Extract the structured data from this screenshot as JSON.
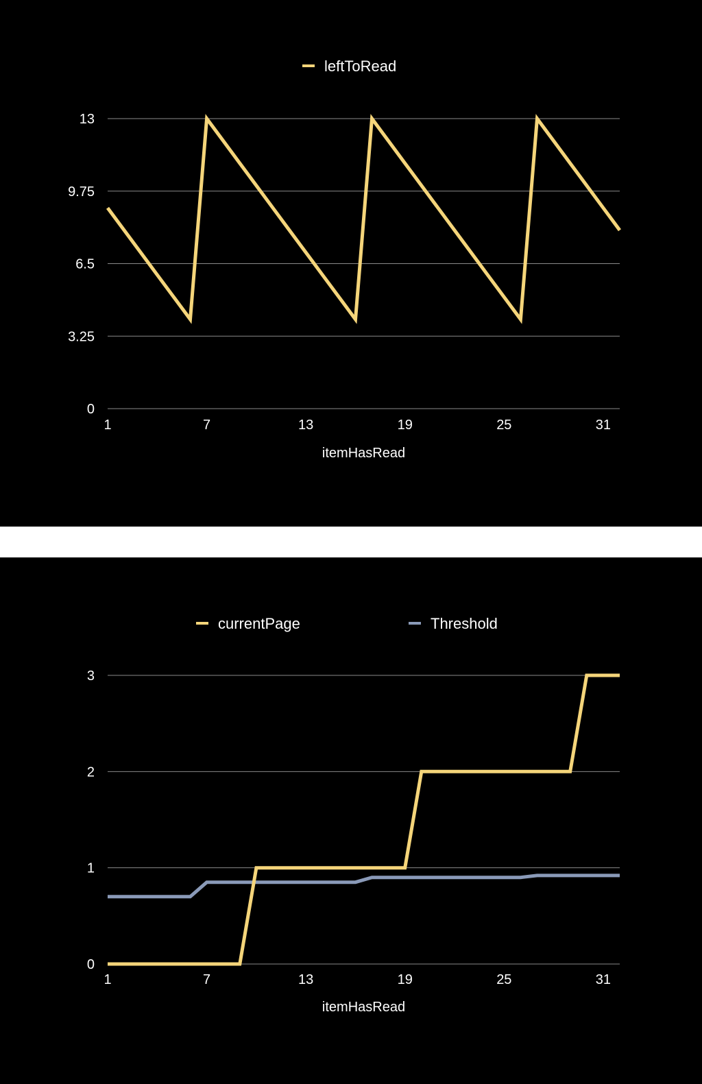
{
  "chart_data": [
    {
      "type": "line",
      "xlabel": "itemHasRead",
      "ylabel": "",
      "xlim": [
        1,
        32
      ],
      "ylim": [
        0,
        13
      ],
      "x_ticks": [
        "1",
        "7",
        "13",
        "19",
        "25",
        "31"
      ],
      "y_ticks": [
        "0",
        "3.25",
        "6.5",
        "9.75",
        "13"
      ],
      "legend_position": "top-center",
      "grid": true,
      "series": [
        {
          "name": "leftToRead",
          "color": "#f5d57a",
          "x": [
            1,
            2,
            3,
            4,
            5,
            6,
            7,
            8,
            9,
            10,
            11,
            12,
            13,
            14,
            15,
            16,
            17,
            18,
            19,
            20,
            21,
            22,
            23,
            24,
            25,
            26,
            27,
            28,
            29,
            30,
            31,
            32
          ],
          "y": [
            9,
            8,
            7,
            6,
            5,
            4,
            13,
            12,
            11,
            10,
            9,
            8,
            7,
            6,
            5,
            4,
            13,
            12,
            11,
            10,
            9,
            8,
            7,
            6,
            5,
            4,
            13,
            12,
            11,
            10,
            9,
            8
          ]
        }
      ]
    },
    {
      "type": "line",
      "xlabel": "itemHasRead",
      "ylabel": "",
      "xlim": [
        1,
        32
      ],
      "ylim": [
        0,
        3
      ],
      "x_ticks": [
        "1",
        "7",
        "13",
        "19",
        "25",
        "31"
      ],
      "y_ticks": [
        "0",
        "1",
        "2",
        "3"
      ],
      "legend_position": "top-center",
      "grid": true,
      "series": [
        {
          "name": "currentPage",
          "color": "#f5d57a",
          "x": [
            1,
            2,
            3,
            4,
            5,
            6,
            7,
            8,
            9,
            10,
            11,
            12,
            13,
            14,
            15,
            16,
            17,
            18,
            19,
            20,
            21,
            22,
            23,
            24,
            25,
            26,
            27,
            28,
            29,
            30,
            31,
            32
          ],
          "y": [
            0,
            0,
            0,
            0,
            0,
            0,
            0,
            0,
            0,
            1,
            1,
            1,
            1,
            1,
            1,
            1,
            1,
            1,
            1,
            2,
            2,
            2,
            2,
            2,
            2,
            2,
            2,
            2,
            2,
            3,
            3,
            3
          ]
        },
        {
          "name": "Threshold",
          "color": "#8a9ab8",
          "x": [
            1,
            2,
            3,
            4,
            5,
            6,
            7,
            8,
            9,
            10,
            11,
            12,
            13,
            14,
            15,
            16,
            17,
            18,
            19,
            20,
            21,
            22,
            23,
            24,
            25,
            26,
            27,
            28,
            29,
            30,
            31,
            32
          ],
          "y": [
            0.7,
            0.7,
            0.7,
            0.7,
            0.7,
            0.7,
            0.85,
            0.85,
            0.85,
            0.85,
            0.85,
            0.85,
            0.85,
            0.85,
            0.85,
            0.85,
            0.9,
            0.9,
            0.9,
            0.9,
            0.9,
            0.9,
            0.9,
            0.9,
            0.9,
            0.9,
            0.92,
            0.92,
            0.92,
            0.92,
            0.92,
            0.92
          ]
        }
      ]
    }
  ]
}
